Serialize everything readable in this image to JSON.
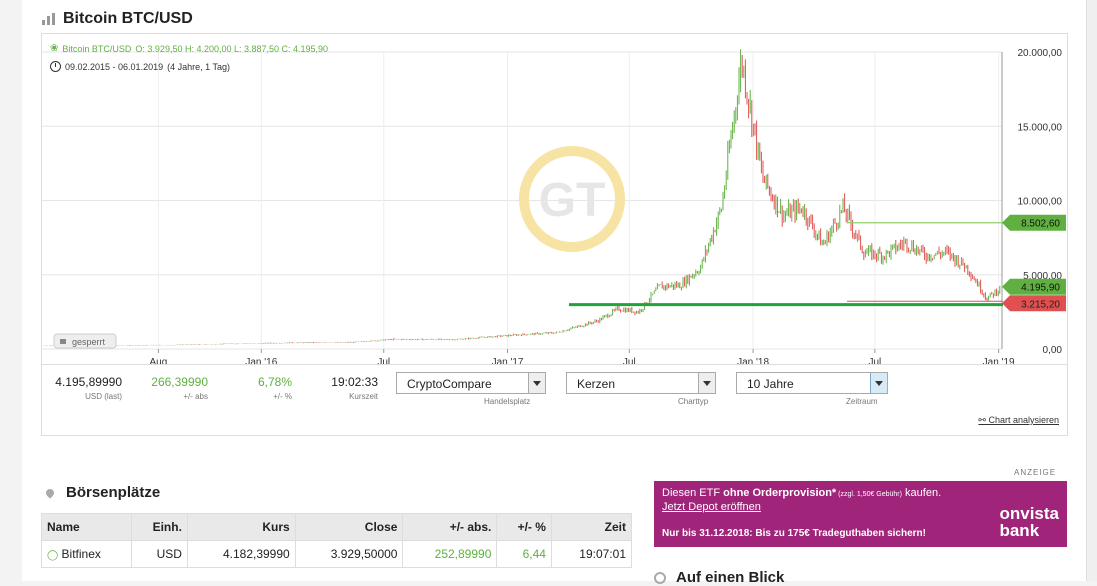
{
  "header": {
    "title": "Bitcoin BTC/USD"
  },
  "chart_legend": {
    "instrument": "Bitcoin BTC/USD",
    "ohlc": "O: 3.929,50  H: 4.200,00  L: 3.887,50  C: 4.195,90",
    "range": "09.02.2015 - 06.01.2019",
    "range_note": "(4 Jahre, 1 Tag)",
    "watermark": "GT",
    "lock_label": "gesperrt"
  },
  "price_tags": {
    "upper": "8.502,60",
    "current": "4.195,90",
    "lower": "3.215,20"
  },
  "chart_data": {
    "type": "candlestick",
    "x_ticks": [
      "Aug",
      "Jan '16",
      "Jul",
      "Jan '17",
      "Jul",
      "Jan '18",
      "Jul",
      "Jan '19"
    ],
    "y_ticks": [
      "20.000,00",
      "15.000,00",
      "10.000,00",
      "5.000,00",
      "0,00"
    ],
    "ylim": [
      0,
      20000
    ],
    "series": [
      {
        "values": [
          [
            "2015-02",
            230
          ],
          [
            "2015-05",
            240
          ],
          [
            "2015-08",
            260
          ],
          [
            "2015-11",
            350
          ],
          [
            "2016-02",
            420
          ],
          [
            "2016-05",
            450
          ],
          [
            "2016-07",
            650
          ],
          [
            "2016-10",
            640
          ],
          [
            "2017-01",
            950
          ],
          [
            "2017-03",
            1100
          ],
          [
            "2017-05",
            1900
          ],
          [
            "2017-06",
            2700
          ],
          [
            "2017-07",
            2500
          ],
          [
            "2017-08",
            4200
          ],
          [
            "2017-09",
            4300
          ],
          [
            "2017-10",
            5500
          ],
          [
            "2017-11",
            9500
          ],
          [
            "2017-12",
            19500
          ],
          [
            "2018-01",
            11500
          ],
          [
            "2018-02",
            9000
          ],
          [
            "2018-03",
            9500
          ],
          [
            "2018-04",
            7000
          ],
          [
            "2018-05",
            9500
          ],
          [
            "2018-06",
            6500
          ],
          [
            "2018-07",
            6300
          ],
          [
            "2018-08",
            7200
          ],
          [
            "2018-09",
            6300
          ],
          [
            "2018-10",
            6500
          ],
          [
            "2018-11",
            5500
          ],
          [
            "2018-12",
            3400
          ],
          [
            "2019-01",
            4195
          ]
        ]
      }
    ],
    "horizontal_lines": [
      8502.6,
      4195.9,
      3215.2,
      3800
    ]
  },
  "stats": {
    "last": "4.195,89990",
    "last_label": "USD (last)",
    "abs": "266,39990",
    "abs_label": "+/- abs",
    "pct": "6,78%",
    "pct_label": "+/- %",
    "time": "19:02:33",
    "time_label": "Kurszeit"
  },
  "selects": {
    "exchange": "CryptoCompare",
    "exchange_label": "Handelsplatz",
    "charttype": "Kerzen",
    "charttype_label": "Charttyp",
    "period": "10 Jahre",
    "period_label": "Zeitraum"
  },
  "analyse_link": "Chart analysieren",
  "exchanges": {
    "title": "Börsenplätze",
    "columns": [
      "Name",
      "Einh.",
      "Kurs",
      "Close",
      "+/- abs.",
      "+/- %",
      "Zeit"
    ],
    "rows": [
      [
        "Bitfinex",
        "USD",
        "4.182,39990",
        "3.929,50000",
        "252,89990",
        "6,44",
        "19:07:01"
      ]
    ]
  },
  "ad": {
    "label": "ANZEIGE",
    "line1_pre": "Diesen ETF ",
    "line1_bold": "ohne Orderprovision*",
    "line1_small": " (zzgl. 1,50€ Gebühr)",
    "line1_post": " kaufen.",
    "line2": "Jetzt Depot eröffnen",
    "line3": "Nur bis 31.12.2018: Bis zu 175€ Tradeguthaben sichern!",
    "logo_line1": "onvista",
    "logo_line2": "bank"
  },
  "glance": {
    "title": "Auf einen Blick"
  },
  "colors": {
    "up": "#5fb040",
    "down": "#e05050",
    "support_line": "#22a33a",
    "ad_bg": "#a0247a"
  }
}
